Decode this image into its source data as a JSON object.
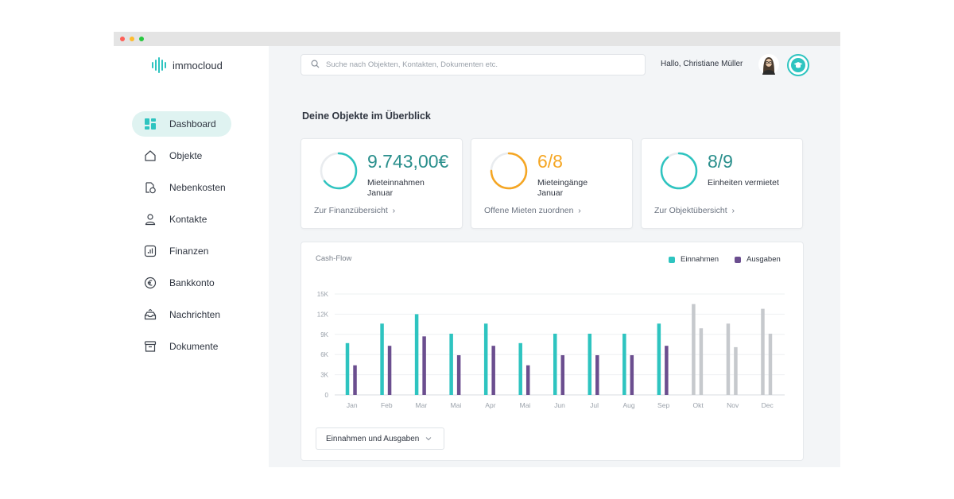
{
  "app": {
    "name": "immocloud"
  },
  "sidebar": {
    "items": [
      {
        "label": "Dashboard",
        "icon": "dashboard-icon",
        "active": true
      },
      {
        "label": "Objekte",
        "icon": "house-icon"
      },
      {
        "label": "Nebenkosten",
        "icon": "document-coin-icon"
      },
      {
        "label": "Kontakte",
        "icon": "person-icon"
      },
      {
        "label": "Finanzen",
        "icon": "bar-chart-icon"
      },
      {
        "label": "Bankkonto",
        "icon": "euro-icon"
      },
      {
        "label": "Nachrichten",
        "icon": "inbox-icon"
      },
      {
        "label": "Dokumente",
        "icon": "archive-box-icon"
      }
    ]
  },
  "header": {
    "search_placeholder": "Suche nach Objekten, Kontakten, Dokumenten etc.",
    "greeting": "Hallo, Christiane Müller",
    "help_icon": "graduation-cap-icon"
  },
  "overview": {
    "title": "Deine Objekte im Überblick",
    "cards": [
      {
        "value": "9.743,00€",
        "label_line1": "Mieteinnahmen",
        "label_line2": "Januar",
        "link": "Zur Finanzübersicht",
        "ring_color": "#2ec4c0",
        "ring_fraction": 0.65
      },
      {
        "value": "6/8",
        "label_line1": "Mieteingänge",
        "label_line2": "Januar",
        "link": "Offene Mieten zuordnen",
        "ring_color": "#f5a623",
        "ring_fraction": 0.75
      },
      {
        "value": "8/9",
        "label_line1": "Einheiten vermietet",
        "label_line2": "",
        "link": "Zur Objektübersicht",
        "ring_color": "#2ec4c0",
        "ring_fraction": 0.89
      }
    ]
  },
  "colors": {
    "accent": "#2ec4c0",
    "income": "#2ec4c0",
    "expenses": "#6b4e8f",
    "forecast": "#c6c9cd",
    "warning": "#f5a623"
  },
  "chart_data": {
    "type": "bar",
    "title": "Cash-Flow",
    "categories": [
      "Jan",
      "Feb",
      "Mar",
      "Mai",
      "Apr",
      "Mai",
      "Jun",
      "Jul",
      "Aug",
      "Sep",
      "Okt",
      "Nov",
      "Dec"
    ],
    "series": [
      {
        "name": "Einnahmen",
        "values": [
          7700,
          10600,
          12000,
          9100,
          10600,
          7700,
          9100,
          9100,
          9100,
          10600,
          13500,
          10600,
          12800
        ]
      },
      {
        "name": "Ausgaben",
        "values": [
          4400,
          7300,
          8700,
          5900,
          7300,
          4400,
          5900,
          5900,
          5900,
          7300,
          9900,
          7100,
          9100
        ]
      }
    ],
    "forecast_from_index": 10,
    "yticks": [
      "0",
      "3K",
      "6K",
      "9K",
      "12K",
      "15K"
    ],
    "ylim": [
      0,
      15000
    ],
    "grid": true,
    "legend_position": "top-right",
    "xlabel": "",
    "ylabel": ""
  },
  "chart_filter": {
    "selected": "Einnahmen und Ausgaben"
  }
}
